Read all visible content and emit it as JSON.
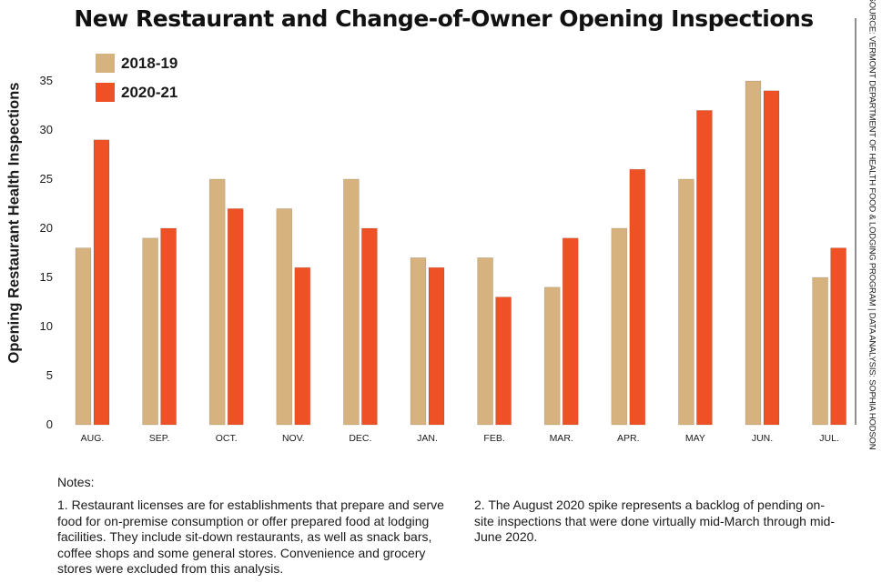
{
  "chart_data": {
    "type": "bar",
    "title": "New Restaurant and Change-of-Owner Opening Inspections",
    "ylabel": "Opening Restaurant Health Inspections",
    "xlabel": "",
    "ylim": [
      0,
      35
    ],
    "yticks": [
      0,
      5,
      10,
      15,
      20,
      25,
      30,
      35
    ],
    "legend_position": "top-left",
    "categories": [
      "AUG.",
      "SEP.",
      "OCT.",
      "NOV.",
      "DEC.",
      "JAN.",
      "FEB.",
      "MAR.",
      "APR.",
      "MAY",
      "JUN.",
      "JUL."
    ],
    "series": [
      {
        "name": "2018-19",
        "color": "#d5b27e",
        "values": [
          18,
          19,
          25,
          22,
          25,
          17,
          17,
          14,
          20,
          25,
          35,
          15
        ]
      },
      {
        "name": "2020-21",
        "color": "#ee5125",
        "values": [
          29,
          20,
          22,
          16,
          20,
          16,
          13,
          19,
          26,
          32,
          34,
          18
        ]
      }
    ],
    "source": "SOURCE: VERMONT DEPARTMENT OF HEALTH FOOD & LODGING PROGRAM | DATA ANALYSIS: SOPHIA HODSON"
  },
  "notes": {
    "heading": "Notes:",
    "note1": "1. Restaurant licenses are for establishments that prepare and serve food for on-premise consumption or offer prepared food at lodging facilities. They include sit-down restaurants, as well as snack bars, coffee shops and some general stores. Convenience and grocery stores were excluded from this analysis.",
    "note2": "2. The August 2020 spike represents a backlog of pending on-site inspections that were done virtually mid-March through mid-June 2020."
  }
}
